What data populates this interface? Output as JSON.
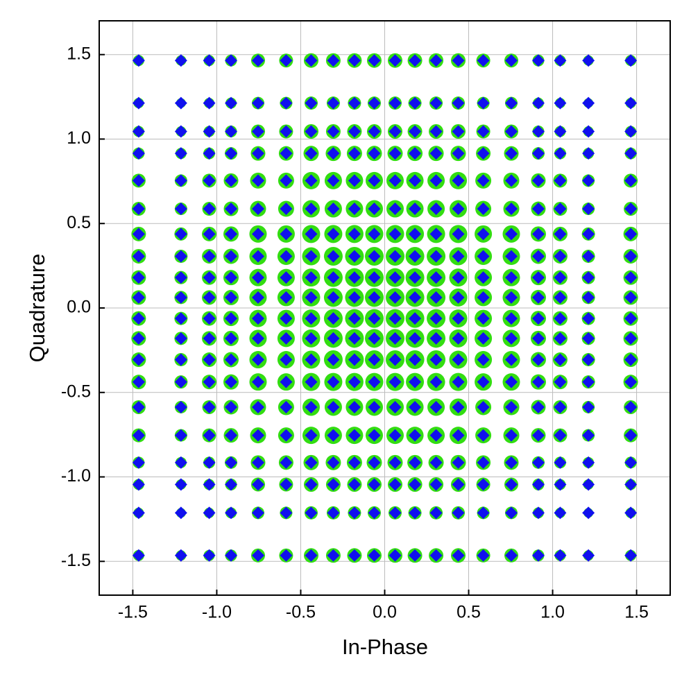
{
  "chart_data": {
    "type": "constellation",
    "xlabel": "In-Phase",
    "ylabel": "Quadrature",
    "xlim": [
      -1.7,
      1.7
    ],
    "ylim": [
      -1.7,
      1.7
    ],
    "xticks": [
      -1.5,
      {
        "value": -1,
        "label": "-1.0"
      },
      -0.5,
      {
        "value": 0,
        "label": "0.0"
      },
      0.5,
      {
        "value": 1,
        "label": "1.0"
      },
      1.5
    ],
    "yticks": [
      -1.5,
      {
        "value": -1,
        "label": "-1.0"
      },
      -0.5,
      {
        "value": 0,
        "label": "0.0"
      },
      0.5,
      {
        "value": 1,
        "label": "1.0"
      },
      1.5
    ],
    "grid": true,
    "x": [
      -1.465,
      -1.213,
      -1.045,
      -0.915,
      -0.754,
      -0.587,
      -0.438,
      -0.306,
      -0.18,
      -0.062,
      0.062,
      0.18,
      0.306,
      0.438,
      0.587,
      0.754,
      0.915,
      1.045,
      1.213,
      1.465
    ],
    "y": [
      -1.465,
      -1.213,
      -1.045,
      -0.915,
      -0.754,
      -0.587,
      -0.438,
      -0.306,
      -0.18,
      -0.062,
      0.062,
      0.18,
      0.306,
      0.438,
      0.587,
      0.754,
      0.915,
      1.045,
      1.213,
      1.465
    ],
    "series": [
      {
        "marker": "circle",
        "color": "#33dd11",
        "sizes": [
          [
            16,
            15,
            16,
            17,
            20,
            20,
            21,
            21,
            21,
            21,
            21,
            21,
            21,
            21,
            20,
            20,
            17,
            16,
            15,
            16
          ],
          [
            15,
            14,
            15,
            16,
            18,
            18,
            19,
            19,
            19,
            19,
            19,
            19,
            19,
            19,
            18,
            18,
            16,
            15,
            14,
            15
          ],
          [
            16,
            15,
            16,
            17,
            20,
            20,
            21,
            21,
            21,
            21,
            21,
            21,
            21,
            21,
            20,
            20,
            17,
            16,
            15,
            16
          ],
          [
            17,
            16,
            17,
            18,
            21,
            21,
            22,
            22,
            22,
            22,
            22,
            22,
            22,
            22,
            21,
            21,
            18,
            17,
            16,
            17
          ],
          [
            20,
            18,
            20,
            21,
            23,
            23,
            25,
            25,
            25,
            25,
            25,
            25,
            25,
            25,
            23,
            23,
            21,
            20,
            18,
            20
          ],
          [
            20,
            18,
            20,
            21,
            23,
            23,
            25,
            25,
            25,
            25,
            25,
            25,
            25,
            25,
            23,
            23,
            21,
            20,
            18,
            20
          ],
          [
            21,
            19,
            21,
            22,
            25,
            25,
            26,
            26,
            26,
            26,
            26,
            26,
            26,
            26,
            25,
            25,
            22,
            21,
            19,
            21
          ],
          [
            21,
            19,
            21,
            22,
            25,
            25,
            26,
            27,
            27,
            27,
            27,
            27,
            27,
            26,
            25,
            25,
            22,
            21,
            19,
            21
          ],
          [
            21,
            19,
            21,
            22,
            25,
            25,
            26,
            27,
            27,
            27,
            27,
            27,
            27,
            26,
            25,
            25,
            22,
            21,
            19,
            21
          ],
          [
            21,
            19,
            21,
            22,
            25,
            25,
            26,
            27,
            27,
            27,
            27,
            27,
            27,
            26,
            25,
            25,
            22,
            21,
            19,
            21
          ],
          [
            21,
            19,
            21,
            22,
            25,
            25,
            26,
            27,
            27,
            27,
            27,
            27,
            27,
            26,
            25,
            25,
            22,
            21,
            19,
            21
          ],
          [
            21,
            19,
            21,
            22,
            25,
            25,
            26,
            27,
            27,
            27,
            27,
            27,
            27,
            26,
            25,
            25,
            22,
            21,
            19,
            21
          ],
          [
            21,
            19,
            21,
            22,
            25,
            25,
            26,
            27,
            27,
            27,
            27,
            27,
            27,
            26,
            25,
            25,
            22,
            21,
            19,
            21
          ],
          [
            21,
            19,
            21,
            22,
            25,
            25,
            26,
            26,
            26,
            26,
            26,
            26,
            26,
            26,
            25,
            25,
            22,
            21,
            19,
            21
          ],
          [
            20,
            18,
            20,
            21,
            23,
            23,
            25,
            25,
            25,
            25,
            25,
            25,
            25,
            25,
            23,
            23,
            21,
            20,
            18,
            20
          ],
          [
            20,
            18,
            20,
            21,
            23,
            23,
            25,
            25,
            25,
            25,
            25,
            25,
            25,
            25,
            23,
            23,
            21,
            20,
            18,
            20
          ],
          [
            17,
            16,
            17,
            18,
            21,
            21,
            22,
            22,
            22,
            22,
            22,
            22,
            22,
            22,
            21,
            21,
            18,
            17,
            16,
            17
          ],
          [
            16,
            15,
            16,
            17,
            20,
            20,
            21,
            21,
            21,
            21,
            21,
            21,
            21,
            21,
            20,
            20,
            17,
            16,
            15,
            16
          ],
          [
            15,
            14,
            15,
            16,
            18,
            18,
            19,
            19,
            19,
            19,
            19,
            19,
            19,
            19,
            18,
            18,
            16,
            15,
            14,
            15
          ],
          [
            16,
            15,
            16,
            17,
            20,
            20,
            21,
            21,
            21,
            21,
            21,
            21,
            21,
            21,
            20,
            20,
            17,
            16,
            15,
            16
          ]
        ]
      },
      {
        "marker": "diamond",
        "color": "#1010ee"
      }
    ]
  }
}
